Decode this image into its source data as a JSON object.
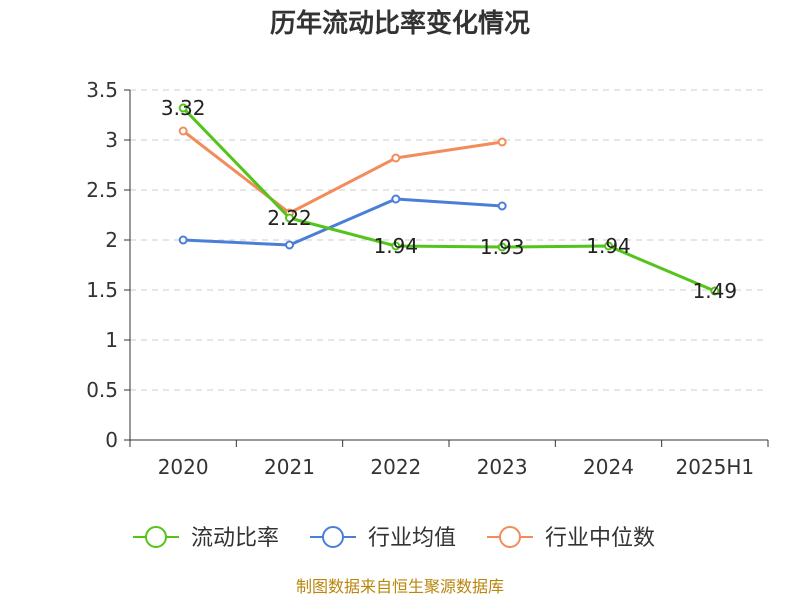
{
  "chart_data": {
    "type": "line",
    "title": "历年流动比率变化情况",
    "categories": [
      "2020",
      "2021",
      "2022",
      "2023",
      "2024",
      "2025H1"
    ],
    "ylim": [
      0,
      3.5
    ],
    "yticks": [
      "0",
      "0.5",
      "1",
      "1.5",
      "2",
      "2.5",
      "3",
      "3.5"
    ],
    "grid": true,
    "legend_position": "bottom",
    "series": [
      {
        "name": "流动比率",
        "color": "#52c41a",
        "values": [
          3.32,
          2.22,
          1.94,
          1.93,
          1.94,
          1.49
        ],
        "labels": [
          "3.32",
          "2.22",
          "1.94",
          "1.93",
          "1.94",
          "1.49"
        ]
      },
      {
        "name": "行业均值",
        "color": "#4a7fd9",
        "values": [
          2.0,
          1.95,
          2.41,
          2.34,
          null,
          null
        ]
      },
      {
        "name": "行业中位数",
        "color": "#f28c5a",
        "values": [
          3.09,
          2.27,
          2.82,
          2.98,
          null,
          null
        ]
      }
    ]
  },
  "source": "制图数据来自恒生聚源数据库"
}
